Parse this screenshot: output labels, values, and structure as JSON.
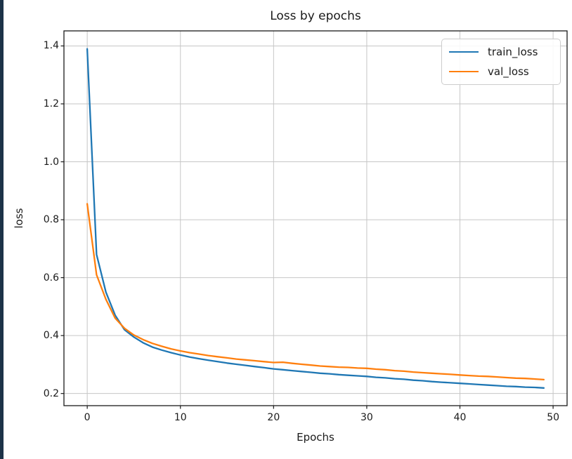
{
  "figure": {
    "left_stripe_color": "#1d3348",
    "background_color": "#ffffff",
    "grid_color": "#c6c6c6",
    "spine_color": "#1a1a1a",
    "text_color": "#1a1a1a"
  },
  "chart_data": {
    "type": "line",
    "title": "Loss by epochs",
    "xlabel": "Epochs",
    "ylabel": "loss",
    "xlim": [
      -2.5,
      51.5
    ],
    "ylim": [
      0.158,
      1.452
    ],
    "xticks": [
      0,
      10,
      20,
      30,
      40,
      50
    ],
    "yticks": [
      0.2,
      0.4,
      0.6,
      0.8,
      1.0,
      1.2,
      1.4
    ],
    "grid": true,
    "legend_position": "upper right",
    "x": [
      0,
      1,
      2,
      3,
      4,
      5,
      6,
      7,
      8,
      9,
      10,
      11,
      12,
      13,
      14,
      15,
      16,
      17,
      18,
      19,
      20,
      21,
      22,
      23,
      24,
      25,
      26,
      27,
      28,
      29,
      30,
      31,
      32,
      33,
      34,
      35,
      36,
      37,
      38,
      39,
      40,
      41,
      42,
      43,
      44,
      45,
      46,
      47,
      48,
      49
    ],
    "series": [
      {
        "name": "train_loss",
        "color": "#1f77b4",
        "values": [
          1.39,
          0.68,
          0.55,
          0.47,
          0.42,
          0.395,
          0.375,
          0.36,
          0.35,
          0.341,
          0.333,
          0.326,
          0.32,
          0.315,
          0.31,
          0.305,
          0.301,
          0.297,
          0.293,
          0.289,
          0.285,
          0.282,
          0.279,
          0.276,
          0.273,
          0.27,
          0.268,
          0.265,
          0.263,
          0.261,
          0.259,
          0.256,
          0.254,
          0.251,
          0.249,
          0.246,
          0.244,
          0.241,
          0.239,
          0.237,
          0.235,
          0.233,
          0.231,
          0.229,
          0.227,
          0.225,
          0.224,
          0.222,
          0.221,
          0.219
        ]
      },
      {
        "name": "val_loss",
        "color": "#ff7f0e",
        "values": [
          0.855,
          0.61,
          0.525,
          0.46,
          0.425,
          0.402,
          0.386,
          0.373,
          0.363,
          0.354,
          0.347,
          0.341,
          0.336,
          0.331,
          0.327,
          0.323,
          0.319,
          0.316,
          0.313,
          0.31,
          0.307,
          0.308,
          0.304,
          0.301,
          0.298,
          0.295,
          0.293,
          0.291,
          0.29,
          0.288,
          0.287,
          0.284,
          0.282,
          0.279,
          0.277,
          0.274,
          0.272,
          0.27,
          0.268,
          0.266,
          0.264,
          0.262,
          0.26,
          0.259,
          0.257,
          0.255,
          0.253,
          0.252,
          0.25,
          0.248
        ]
      }
    ]
  }
}
